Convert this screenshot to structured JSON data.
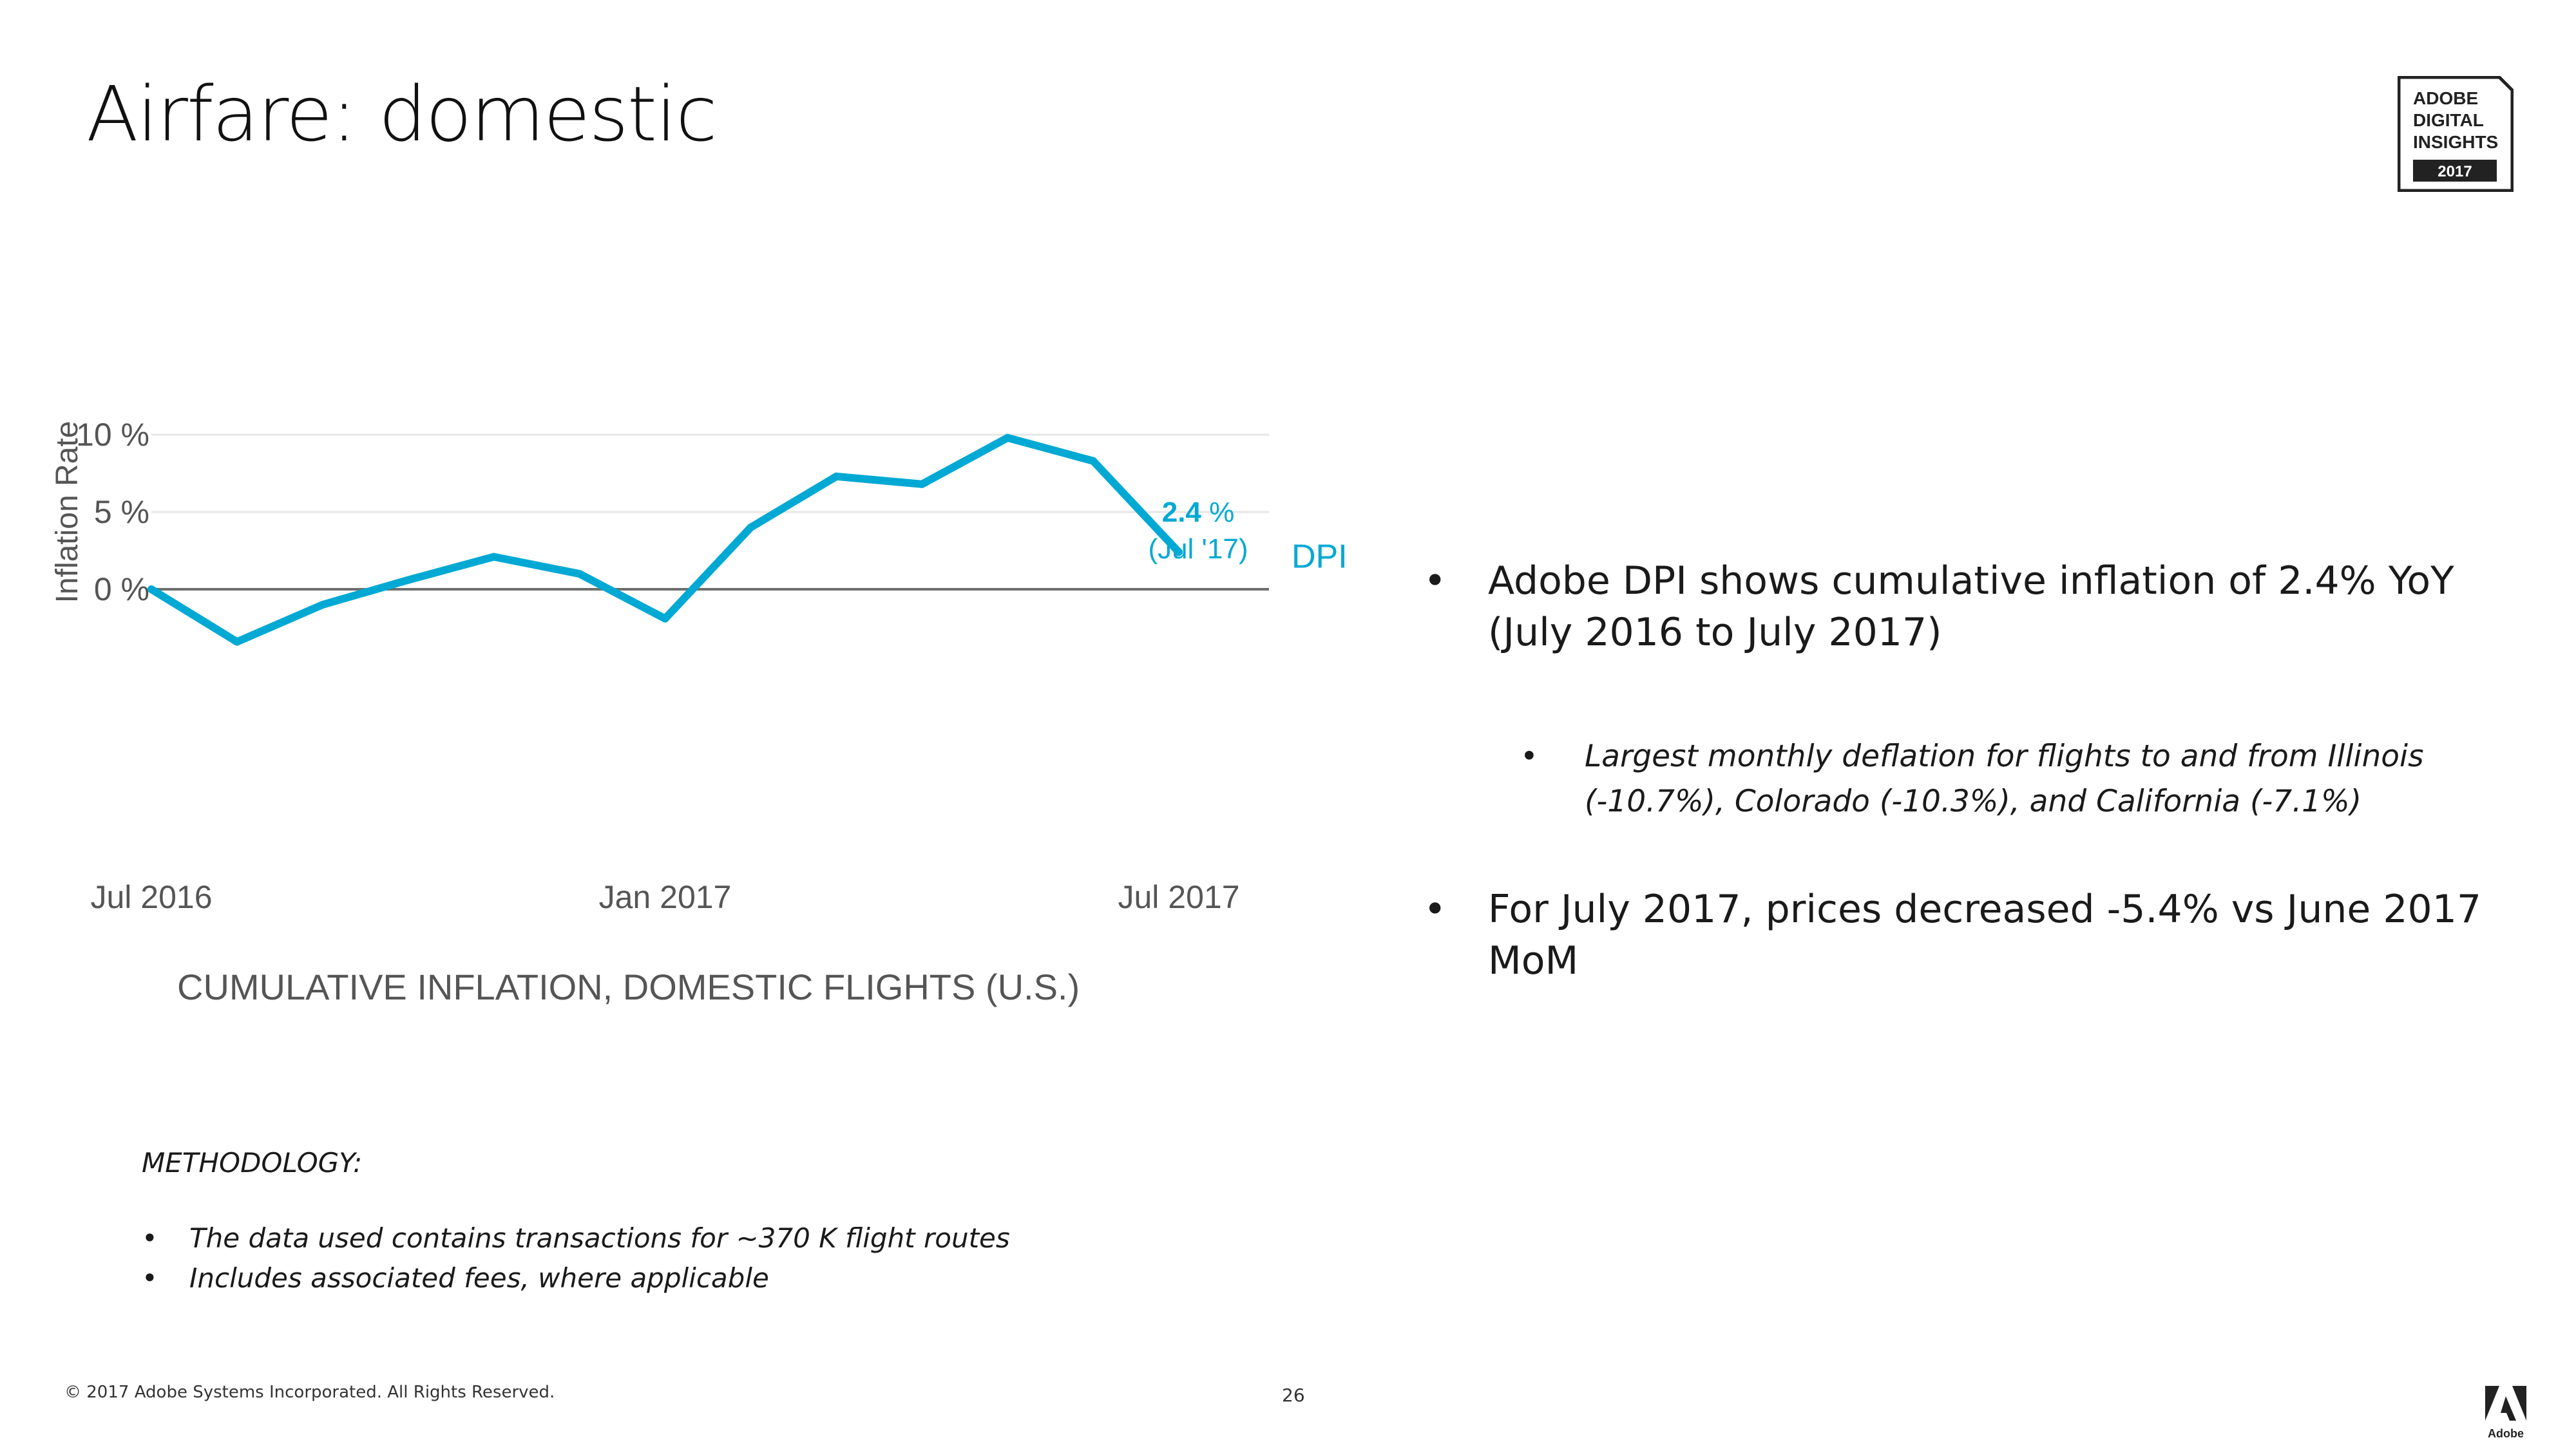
{
  "slide": {
    "title": "Airfare: domestic",
    "badge": {
      "line1": "ADOBE",
      "line2": "DIGITAL",
      "line3": "INSIGHTS",
      "year": "2017"
    }
  },
  "chart_data": {
    "type": "line",
    "title": "CUMULATIVE INFLATION, DOMESTIC FLIGHTS (U.S.)",
    "xlabel": "",
    "ylabel": "Inflation Rate",
    "x": [
      "2016-07",
      "2016-08",
      "2016-09",
      "2016-10",
      "2016-11",
      "2016-12",
      "2017-01",
      "2017-02",
      "2017-03",
      "2017-04",
      "2017-05",
      "2017-06",
      "2017-07"
    ],
    "x_ticks": [
      {
        "x": "2016-07",
        "label": "Jul 2016"
      },
      {
        "x": "2017-01",
        "label": "Jan 2017"
      },
      {
        "x": "2017-07",
        "label": "Jul 2017"
      }
    ],
    "y_ticks": [
      {
        "value": 10,
        "label": "10 %"
      },
      {
        "value": 5,
        "label": "5 %"
      },
      {
        "value": 0,
        "label": "0 %"
      }
    ],
    "ylim": [
      -4,
      10.5
    ],
    "grid": true,
    "series": [
      {
        "name": "DPI",
        "color": "#00a9d4",
        "values": [
          0.0,
          -3.4,
          -1.0,
          0.6,
          2.1,
          1.0,
          -1.9,
          4.0,
          7.3,
          6.8,
          9.8,
          8.3,
          2.4
        ]
      }
    ],
    "end_label": {
      "value": "2.4",
      "unit": " %",
      "period": "(Jul '17)"
    }
  },
  "bullets": {
    "b1": "Adobe DPI shows cumulative inflation of 2.4% YoY (July 2016 to July 2017)",
    "b1_sub": "Largest monthly deflation for flights to and from Illinois (-10.7%), Colorado (-10.3%), and California (-7.1%)",
    "b2": "For July 2017, prices decreased -5.4% vs June 2017 MoM",
    "marker": "•"
  },
  "methodology": {
    "heading": "METHODOLOGY:",
    "items": [
      "The data used contains transactions for ~370 K flight routes",
      "Includes associated fees, where applicable"
    ]
  },
  "footer": {
    "copyright": "© 2017 Adobe Systems Incorporated.  All Rights Reserved.",
    "page": "26",
    "logo_text": "Adobe"
  }
}
